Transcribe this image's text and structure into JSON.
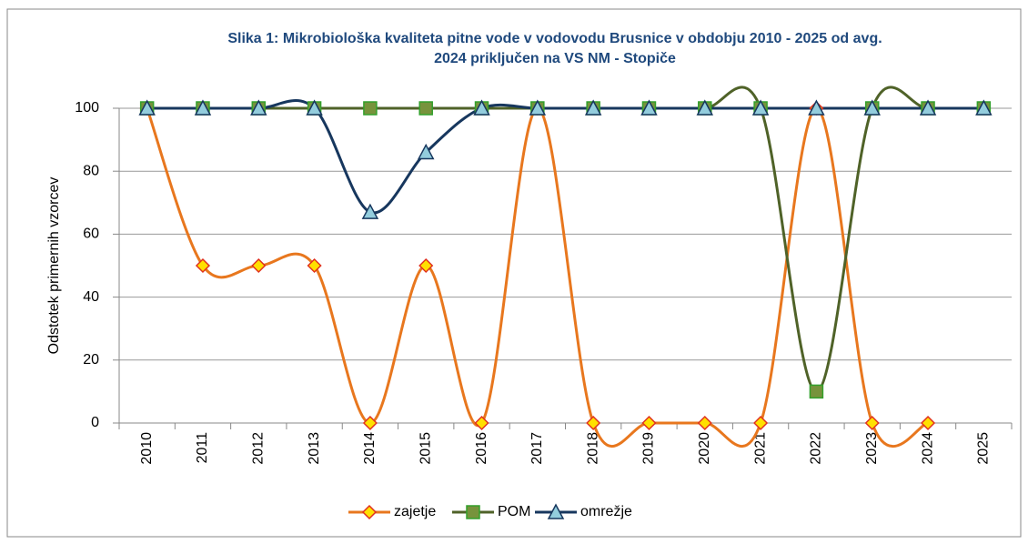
{
  "chart_data": {
    "type": "line",
    "title": [
      "Slika 1: Mikrobiološka kvaliteta pitne vode v vodovodu Brusnice v obdobju 2010 - 2025 od avg.",
      "2024 priključen na VS NM - Stopiče"
    ],
    "ylabel": "Odstotek primernih vzorcev",
    "categories": [
      "2010",
      "2011",
      "2012",
      "2013",
      "2014",
      "2015",
      "2016",
      "2017",
      "2018",
      "2019",
      "2020",
      "2021",
      "2022",
      "2023",
      "2024",
      "2025"
    ],
    "series": [
      {
        "name": "zajetje",
        "color": "#e8771e",
        "marker": "diamond",
        "marker_fill": "#ffe000",
        "marker_stroke": "#e0301e",
        "values": [
          100,
          50,
          50,
          50,
          0,
          50,
          0,
          100,
          0,
          0,
          0,
          0,
          100,
          0,
          0,
          null
        ]
      },
      {
        "name": "POM",
        "color": "#4f6228",
        "marker": "square",
        "marker_fill": "#77933c",
        "marker_stroke": "#33a02c",
        "values": [
          100,
          100,
          100,
          100,
          100,
          100,
          100,
          100,
          100,
          100,
          100,
          100,
          10,
          100,
          100,
          100
        ]
      },
      {
        "name": "omrežje",
        "color": "#17375e",
        "marker": "triangle",
        "marker_fill": "#93cddd",
        "marker_stroke": "#17375e",
        "values": [
          100,
          100,
          100,
          100,
          67,
          86,
          100,
          100,
          100,
          100,
          100,
          100,
          100,
          100,
          100,
          100
        ]
      }
    ],
    "ylim": [
      0,
      100
    ],
    "yticks": [
      0,
      20,
      40,
      60,
      80,
      100
    ],
    "grid": true,
    "smooth": true,
    "legend": "bottom"
  }
}
